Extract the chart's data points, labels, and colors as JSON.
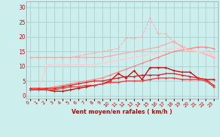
{
  "x": [
    0,
    1,
    2,
    3,
    4,
    5,
    6,
    7,
    8,
    9,
    10,
    11,
    12,
    13,
    14,
    15,
    16,
    17,
    18,
    19,
    20,
    21,
    22,
    23
  ],
  "background_color": "#cceeed",
  "grid_color": "#aacccc",
  "xlabel": "Vent moyen/en rafales ( km/h )",
  "xlabel_color": "#cc0000",
  "yticks": [
    0,
    5,
    10,
    15,
    20,
    25,
    30
  ],
  "ylim": [
    -1,
    32
  ],
  "xlim": [
    -0.5,
    23.5
  ],
  "lines": [
    {
      "y": [
        13.0,
        13.0,
        13.0,
        13.0,
        13.0,
        13.0,
        13.0,
        13.0,
        13.0,
        13.0,
        13.5,
        14.0,
        14.5,
        15.0,
        15.5,
        16.0,
        16.5,
        17.5,
        18.5,
        16.5,
        15.0,
        15.0,
        14.0,
        13.0
      ],
      "color": "#ffaaaa",
      "lw": 1.0,
      "marker": "+",
      "ms": 3.5
    },
    {
      "y": [
        13.0,
        13.0,
        13.0,
        13.0,
        13.0,
        13.0,
        13.5,
        14.0,
        14.5,
        15.0,
        15.5,
        16.0,
        19.5,
        19.5,
        20.0,
        26.5,
        21.0,
        21.0,
        18.0,
        17.0,
        15.5,
        16.5,
        16.5,
        13.0
      ],
      "color": "#ffaaaa",
      "lw": 0.8,
      "marker": "+",
      "ms": 3.5,
      "linestyle": "--"
    },
    {
      "y": [
        2.0,
        2.0,
        2.5,
        3.0,
        3.5,
        4.0,
        4.5,
        5.0,
        5.5,
        6.0,
        7.0,
        8.0,
        9.0,
        10.0,
        11.0,
        12.0,
        13.0,
        14.0,
        15.0,
        15.5,
        16.0,
        16.5,
        16.5,
        16.0
      ],
      "color": "#ff8888",
      "lw": 1.0,
      "marker": "+",
      "ms": 3.5
    },
    {
      "y": [
        2.0,
        2.0,
        10.5,
        10.5,
        10.5,
        10.5,
        10.5,
        10.5,
        10.5,
        11.0,
        11.5,
        12.0,
        12.5,
        13.0,
        13.5,
        14.0,
        14.5,
        15.5,
        16.0,
        16.0,
        15.5,
        15.0,
        14.5,
        13.5
      ],
      "color": "#ffcccc",
      "lw": 1.0,
      "marker": "+",
      "ms": 3.5
    },
    {
      "y": [
        2.0,
        2.0,
        2.0,
        1.5,
        1.5,
        2.0,
        2.5,
        3.0,
        3.5,
        4.0,
        5.0,
        7.5,
        6.0,
        8.5,
        5.5,
        9.5,
        9.5,
        9.5,
        8.5,
        8.0,
        8.0,
        6.0,
        5.5,
        5.5
      ],
      "color": "#cc0000",
      "lw": 1.0,
      "marker": "+",
      "ms": 3.5
    },
    {
      "y": [
        2.5,
        2.5,
        2.5,
        2.5,
        3.0,
        3.5,
        4.0,
        4.5,
        5.0,
        5.0,
        5.5,
        6.0,
        6.5,
        6.5,
        7.0,
        7.0,
        7.0,
        7.5,
        7.5,
        7.0,
        6.5,
        6.0,
        5.5,
        3.5
      ],
      "color": "#dd2222",
      "lw": 1.0,
      "marker": "+",
      "ms": 3.5
    },
    {
      "y": [
        2.0,
        2.0,
        2.0,
        2.0,
        2.5,
        3.0,
        3.0,
        3.5,
        3.5,
        4.0,
        4.5,
        4.5,
        5.0,
        5.0,
        5.0,
        5.5,
        6.0,
        6.0,
        6.0,
        5.5,
        5.5,
        5.5,
        5.0,
        3.0
      ],
      "color": "#ff3333",
      "lw": 1.0,
      "marker": "+",
      "ms": 3.5
    }
  ],
  "tick_label_color": "#cc0000",
  "tick_label_size": 5.0,
  "ytick_label_size": 5.5
}
